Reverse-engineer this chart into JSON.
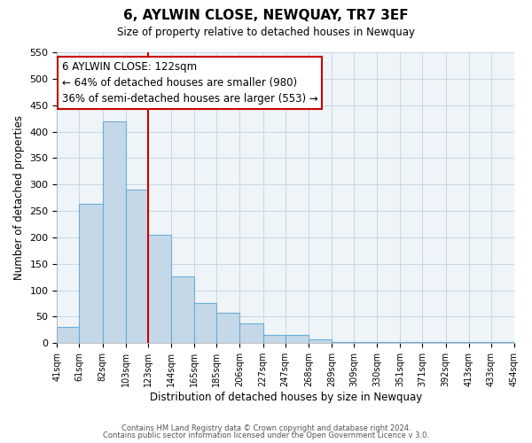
{
  "title": "6, AYLWIN CLOSE, NEWQUAY, TR7 3EF",
  "subtitle": "Size of property relative to detached houses in Newquay",
  "xlabel": "Distribution of detached houses by size in Newquay",
  "ylabel": "Number of detached properties",
  "footer_lines": [
    "Contains HM Land Registry data © Crown copyright and database right 2024.",
    "Contains public sector information licensed under the Open Government Licence v 3.0."
  ],
  "bar_edges": [
    41,
    61,
    82,
    103,
    123,
    144,
    165,
    185,
    206,
    227,
    247,
    268,
    289,
    309,
    330,
    351,
    371,
    392,
    413,
    433,
    454
  ],
  "bar_heights": [
    30,
    263,
    420,
    290,
    205,
    126,
    75,
    57,
    37,
    15,
    15,
    7,
    2,
    2,
    2,
    2,
    2,
    2,
    2,
    2
  ],
  "bar_color": "#c5d8e8",
  "bar_edgecolor": "#6aaed6",
  "vline_x": 123,
  "vline_color": "#cc0000",
  "annotation_title": "6 AYLWIN CLOSE: 122sqm",
  "annotation_line1": "← 64% of detached houses are smaller (980)",
  "annotation_line2": "36% of semi-detached houses are larger (553) →",
  "annotation_box_edgecolor": "#cc0000",
  "ylim": [
    0,
    550
  ],
  "yticks": [
    0,
    50,
    100,
    150,
    200,
    250,
    300,
    350,
    400,
    450,
    500,
    550
  ],
  "tick_labels": [
    "41sqm",
    "61sqm",
    "82sqm",
    "103sqm",
    "123sqm",
    "144sqm",
    "165sqm",
    "185sqm",
    "206sqm",
    "227sqm",
    "247sqm",
    "268sqm",
    "289sqm",
    "309sqm",
    "330sqm",
    "351sqm",
    "371sqm",
    "392sqm",
    "413sqm",
    "433sqm",
    "454sqm"
  ]
}
